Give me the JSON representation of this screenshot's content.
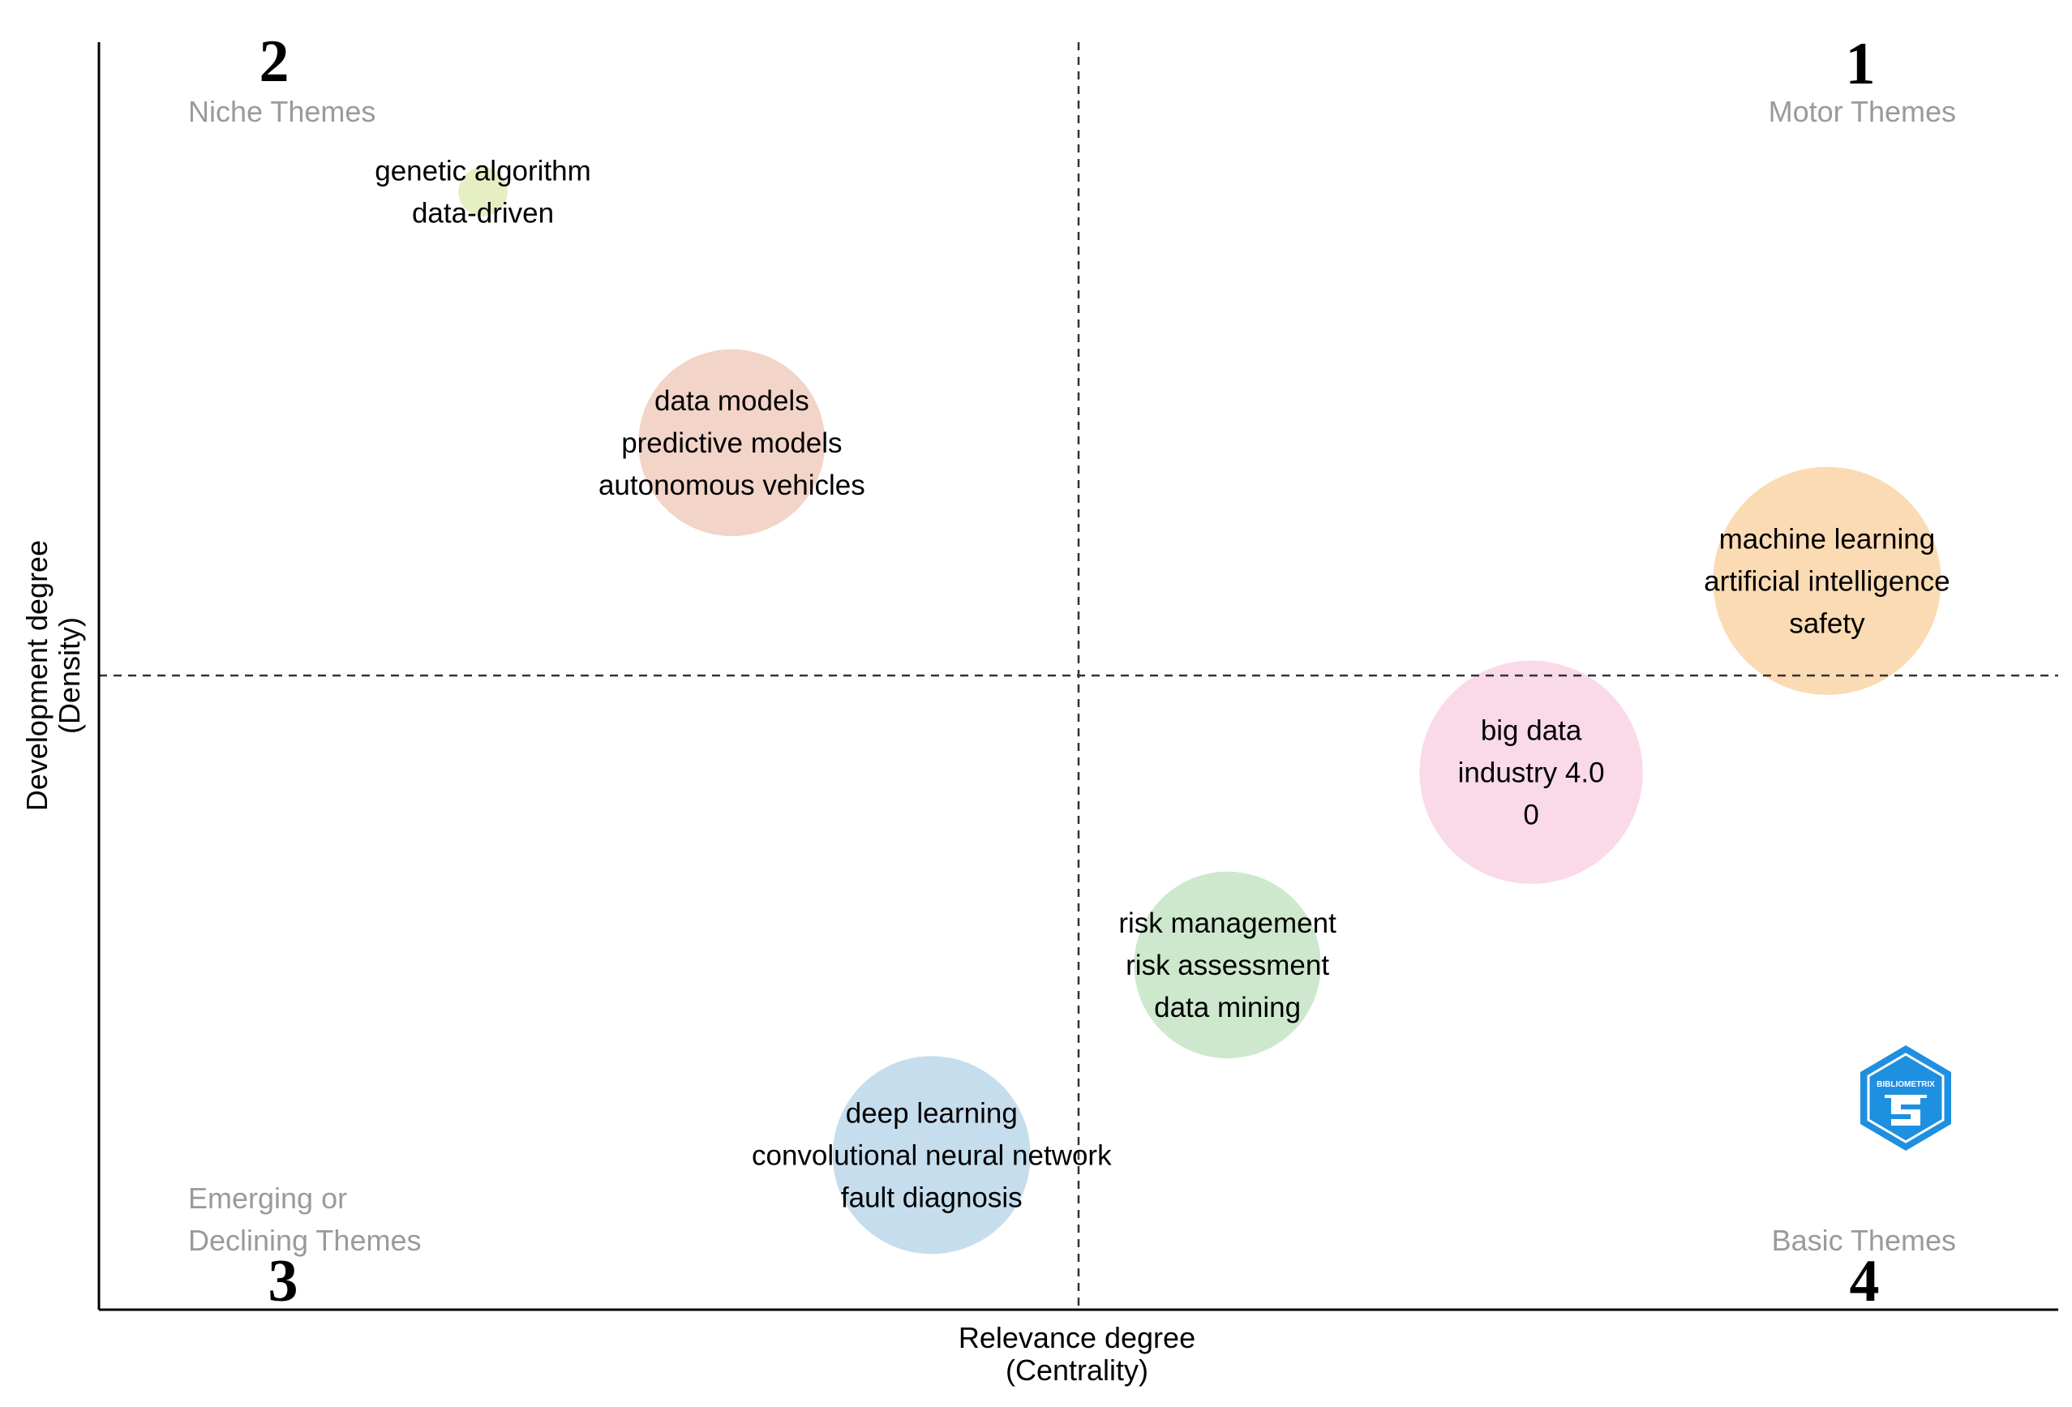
{
  "chart_data": {
    "type": "scatter",
    "title": "",
    "xlabel": "Relevance degree",
    "xlabel_sub": "(Centrality)",
    "ylabel": "Development degree",
    "ylabel_sub": "(Density)",
    "xlim": [
      0,
      100
    ],
    "ylim": [
      0,
      100
    ],
    "x_divider": 50,
    "y_divider": 50,
    "quadrants": [
      {
        "number": "1",
        "name_lines": [
          "Motor Themes"
        ],
        "position": "top-right"
      },
      {
        "number": "2",
        "name_lines": [
          "Niche Themes"
        ],
        "position": "top-left"
      },
      {
        "number": "3",
        "name_lines": [
          "Emerging or",
          "Declining Themes"
        ],
        "position": "bottom-left"
      },
      {
        "number": "4",
        "name_lines": [
          "Basic Themes"
        ],
        "position": "bottom-right"
      }
    ],
    "clusters": [
      {
        "labels": [
          "genetic algorithm",
          "data-driven"
        ],
        "x": 19.6,
        "y": 88.2,
        "size": 0.2,
        "color": "#e6efc4"
      },
      {
        "labels": [
          "data models",
          "predictive models",
          "autonomous vehicles"
        ],
        "x": 32.3,
        "y": 68.4,
        "size": 3.2,
        "color": "#f2d4c8"
      },
      {
        "labels": [
          "machine learning",
          "artificial intelligence",
          "safety"
        ],
        "x": 88.2,
        "y": 57.5,
        "size": 4.8,
        "color": "#fbdbb4"
      },
      {
        "labels": [
          "big data",
          "industry 4.0",
          "0"
        ],
        "x": 73.1,
        "y": 42.4,
        "size": 4.6,
        "color": "#fadae8"
      },
      {
        "labels": [
          "risk management",
          "risk assessment",
          "data mining"
        ],
        "x": 57.6,
        "y": 27.2,
        "size": 3.2,
        "color": "#cde8cd"
      },
      {
        "labels": [
          "deep learning",
          "convolutional neural network",
          "fault diagnosis"
        ],
        "x": 42.5,
        "y": 12.2,
        "size": 3.6,
        "color": "#c6dded"
      }
    ],
    "logo": {
      "text": "BIBLIOMETRIX",
      "color": "#1f8fe0"
    }
  }
}
